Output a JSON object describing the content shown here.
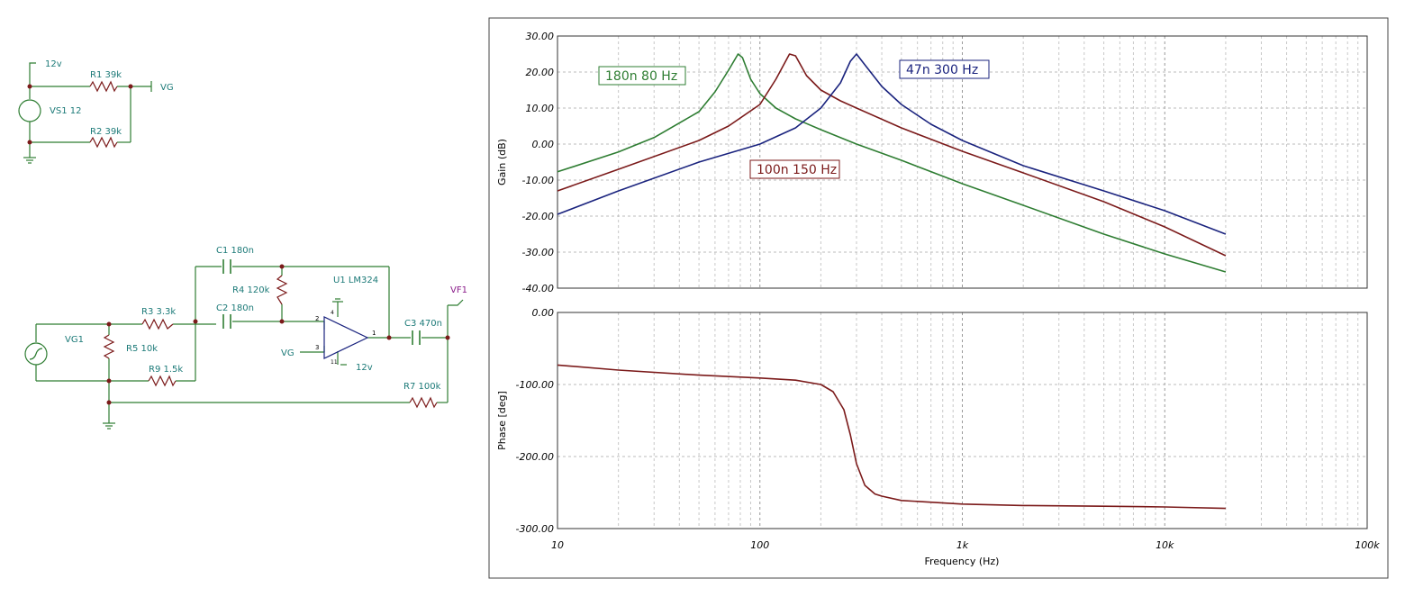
{
  "schematic": {
    "labels": {
      "v12_top": "12v",
      "r1": "R1 39k",
      "vg_out": "VG",
      "vs1": "VS1 12",
      "r2": "R2 39k",
      "c1": "C1 180n",
      "r4": "R4 120k",
      "u1": "U1 LM324",
      "vf1": "VF1",
      "r3": "R3 3.3k",
      "c2": "C2 180n",
      "vg1": "VG1",
      "r5": "R5 10k",
      "vg_in": "VG",
      "c3": "C3 470n",
      "r9": "R9 1.5k",
      "v12_op": "12v",
      "r7": "R7 100k",
      "pin2": "2",
      "pin3": "3",
      "pin1": "1",
      "pin4": "4",
      "pin11": "11"
    },
    "colors": {
      "wire": "#2e7d32",
      "node": "#7b1a1a",
      "text": "#1c7a78",
      "vf": "#8a1d8a"
    }
  },
  "chart_data": [
    {
      "type": "line",
      "ylabel": "Gain (dB)",
      "xscale": "log",
      "xlim": [
        10,
        100000
      ],
      "ylim": [
        -40,
        30
      ],
      "ytick_labels": [
        "30.00",
        "20.00",
        "10.00",
        "0.00",
        "-10.00",
        "-20.00",
        "-30.00",
        "-40.00"
      ],
      "grid": true,
      "series": [
        {
          "name": "180n  80 Hz",
          "color": "#2e7d32",
          "x": [
            10,
            20,
            30,
            50,
            60,
            70,
            78,
            82,
            90,
            100,
            120,
            150,
            200,
            300,
            500,
            1000,
            2000,
            5000,
            10000,
            20000
          ],
          "y": [
            -7.7,
            -2.2,
            1.8,
            9.0,
            14.5,
            20.5,
            25.0,
            24.0,
            18.0,
            14.0,
            10.0,
            7.0,
            4.0,
            0.0,
            -4.5,
            -11.0,
            -17.0,
            -25.0,
            -30.5,
            -35.5
          ]
        },
        {
          "name": "100n 150 Hz",
          "color": "#7b1a1a",
          "x": [
            10,
            20,
            50,
            70,
            100,
            120,
            140,
            150,
            170,
            200,
            250,
            300,
            500,
            1000,
            2000,
            5000,
            10000,
            20000
          ],
          "y": [
            -13.0,
            -7.0,
            1.0,
            5.0,
            11.0,
            18.0,
            25.0,
            24.5,
            19.0,
            15.0,
            12.0,
            10.0,
            4.5,
            -2.0,
            -8.0,
            -16.0,
            -23.0,
            -31.0
          ]
        },
        {
          "name": "47n  300 Hz",
          "color": "#1a237e",
          "x": [
            10,
            20,
            50,
            100,
            150,
            200,
            250,
            280,
            300,
            330,
            400,
            500,
            700,
            1000,
            2000,
            5000,
            10000,
            20000
          ],
          "y": [
            -19.5,
            -13.0,
            -5.0,
            0.0,
            4.5,
            10.0,
            17.0,
            23.0,
            25.0,
            22.0,
            16.0,
            11.0,
            5.5,
            1.0,
            -6.0,
            -13.0,
            -18.5,
            -25.0
          ]
        }
      ]
    },
    {
      "type": "line",
      "xlabel": "Frequency (Hz)",
      "ylabel": "Phase [deg]",
      "xscale": "log",
      "xlim": [
        10,
        100000
      ],
      "ylim": [
        -300,
        0
      ],
      "ytick_labels": [
        "0.00",
        "-100.00",
        "-200.00",
        "-300.00"
      ],
      "xtick_labels": [
        "10",
        "100",
        "1k",
        "10k",
        "100k"
      ],
      "grid": true,
      "series": [
        {
          "color": "#7b1a1a",
          "x": [
            10,
            20,
            50,
            100,
            150,
            200,
            230,
            260,
            280,
            300,
            330,
            370,
            400,
            500,
            1000,
            2000,
            5000,
            10000,
            20000
          ],
          "y": [
            -73,
            -80,
            -87,
            -91,
            -94,
            -100,
            -110,
            -135,
            -170,
            -210,
            -240,
            -252,
            -255,
            -261,
            -266,
            -268,
            -269,
            -270,
            -272
          ]
        }
      ]
    }
  ]
}
